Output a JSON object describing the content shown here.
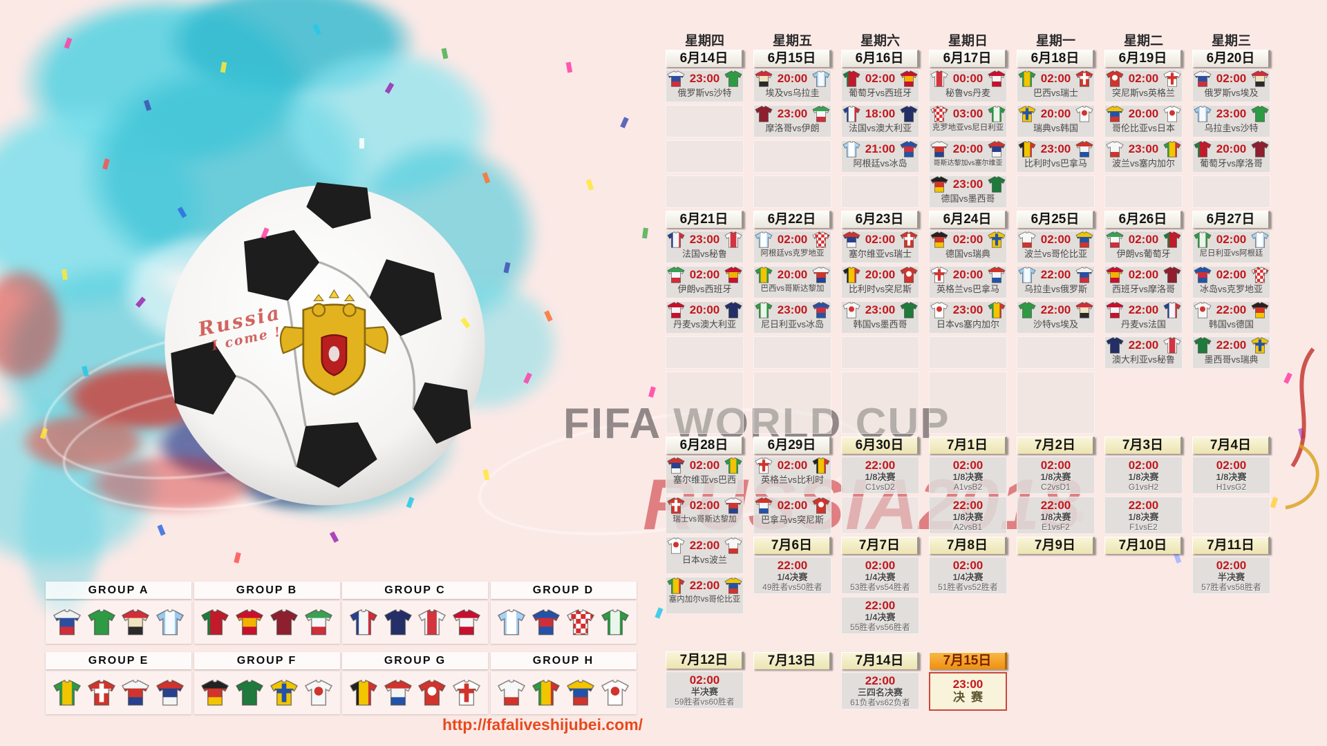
{
  "weekdays": [
    "星期四",
    "星期五",
    "星期六",
    "星期日",
    "星期一",
    "星期二",
    "星期三"
  ],
  "watermark": {
    "line1": "FIFA WORLD CUP",
    "line2": "RUSSIA2018"
  },
  "handwriting": {
    "line1": "Russia",
    "line2": "I come !"
  },
  "url": "http://fafaliveshijubei.com/",
  "colors": {
    "time_red": "#c3161c",
    "date_beige": "#eae6dc",
    "date_yellow": "#ece4b2",
    "date_orange": "#ee9010",
    "cell_gray": "#dedcd9",
    "splash_teal": "#45c6d8"
  },
  "teams": {
    "russia": {
      "name": "俄罗斯",
      "j": {
        "type": "stripes",
        "dir": "h",
        "c": [
          "#f2f2f2",
          "#2a4fa0",
          "#cf2e3a"
        ]
      }
    },
    "saudi": {
      "name": "沙特",
      "j": {
        "type": "stripes",
        "dir": "h",
        "c": [
          "#2f9a44"
        ]
      }
    },
    "egypt": {
      "name": "埃及",
      "j": {
        "type": "stripes",
        "dir": "h",
        "c": [
          "#cf2e3a",
          "#efe3c0",
          "#2a2a2a"
        ]
      }
    },
    "uruguay": {
      "name": "乌拉圭",
      "j": {
        "type": "stripes",
        "dir": "v",
        "c": [
          "#9dc9ec",
          "#f5faff",
          "#9dc9ec"
        ]
      }
    },
    "portugal": {
      "name": "葡萄牙",
      "j": {
        "type": "stripes",
        "dir": "v",
        "c": [
          "#1b7e3c",
          "#c11a2b",
          "#c11a2b"
        ]
      }
    },
    "spain": {
      "name": "西班牙",
      "j": {
        "type": "stripes",
        "dir": "h",
        "c": [
          "#c8102e",
          "#f0b400",
          "#c8102e"
        ]
      }
    },
    "morocco": {
      "name": "摩洛哥",
      "j": {
        "type": "stripes",
        "dir": "h",
        "c": [
          "#8e1f2f"
        ]
      }
    },
    "iran": {
      "name": "伊朗",
      "j": {
        "type": "stripes",
        "dir": "h",
        "c": [
          "#3aa053",
          "#f7f7f7",
          "#cf2e3a"
        ]
      }
    },
    "france": {
      "name": "法国",
      "j": {
        "type": "stripes",
        "dir": "v",
        "c": [
          "#27418f",
          "#f5f5f5",
          "#cf2e3a"
        ]
      }
    },
    "australia": {
      "name": "澳大利亚",
      "j": {
        "type": "stripes",
        "dir": "h",
        "c": [
          "#232f66"
        ]
      }
    },
    "peru": {
      "name": "秘鲁",
      "j": {
        "type": "stripes",
        "dir": "v",
        "c": [
          "#f7f7f7",
          "#d23440",
          "#f7f7f7"
        ]
      }
    },
    "denmark": {
      "name": "丹麦",
      "j": {
        "type": "stripes",
        "dir": "h",
        "c": [
          "#c8102e",
          "#f5f5f5",
          "#c8102e"
        ]
      }
    },
    "argentina": {
      "name": "阿根廷",
      "j": {
        "type": "stripes",
        "dir": "v",
        "c": [
          "#a9d3f5",
          "#ffffff",
          "#a9d3f5"
        ]
      }
    },
    "iceland": {
      "name": "冰岛",
      "j": {
        "type": "stripes",
        "dir": "h",
        "c": [
          "#2253a8",
          "#cf2e3a",
          "#2253a8"
        ]
      }
    },
    "croatia": {
      "name": "克罗地亚",
      "j": {
        "type": "check",
        "c": [
          "#d92b2b",
          "#ffffff"
        ]
      }
    },
    "nigeria": {
      "name": "尼日利亚",
      "j": {
        "type": "stripes",
        "dir": "v",
        "c": [
          "#2f9a44",
          "#eaf5ec",
          "#2f9a44"
        ]
      }
    },
    "brazil": {
      "name": "巴西",
      "j": {
        "type": "stripes",
        "dir": "v",
        "c": [
          "#2f9a44",
          "#f2c500",
          "#2f9a44"
        ]
      }
    },
    "switzerland": {
      "name": "瑞士",
      "j": {
        "type": "cross",
        "c": [
          "#d0342c",
          "#ffffff"
        ]
      }
    },
    "costarica": {
      "name": "哥斯达黎加",
      "j": {
        "type": "stripes",
        "dir": "h",
        "c": [
          "#f5f5f5",
          "#d0342c",
          "#27418f"
        ]
      }
    },
    "serbia": {
      "name": "塞尔维亚",
      "j": {
        "type": "stripes",
        "dir": "h",
        "c": [
          "#d0342c",
          "#27418f",
          "#f5f5f5"
        ]
      }
    },
    "germany": {
      "name": "德国",
      "j": {
        "type": "stripes",
        "dir": "h",
        "c": [
          "#222222",
          "#d0342c",
          "#f2c500"
        ]
      }
    },
    "mexico": {
      "name": "墨西哥",
      "j": {
        "type": "stripes",
        "dir": "h",
        "c": [
          "#1f7a3c"
        ]
      }
    },
    "sweden": {
      "name": "瑞典",
      "j": {
        "type": "cross",
        "c": [
          "#f2c500",
          "#2253a8"
        ]
      }
    },
    "korea": {
      "name": "韩国",
      "j": {
        "type": "dot",
        "c": [
          "#f7f7f7",
          "#d0342c"
        ]
      }
    },
    "belgium": {
      "name": "比利时",
      "j": {
        "type": "stripes",
        "dir": "v",
        "c": [
          "#222222",
          "#f2c500",
          "#d0342c"
        ]
      }
    },
    "panama": {
      "name": "巴拿马",
      "j": {
        "type": "stripes",
        "dir": "h",
        "c": [
          "#d0342c",
          "#f5f5f5",
          "#2253a8"
        ]
      }
    },
    "tunisia": {
      "name": "突尼斯",
      "j": {
        "type": "dot",
        "c": [
          "#d0342c",
          "#ffffff"
        ]
      }
    },
    "england": {
      "name": "英格兰",
      "j": {
        "type": "cross",
        "c": [
          "#ffffff",
          "#d0342c"
        ]
      }
    },
    "poland": {
      "name": "波兰",
      "j": {
        "type": "stripes",
        "dir": "h",
        "c": [
          "#f7f7f7",
          "#f7f7f7",
          "#d0342c"
        ]
      }
    },
    "senegal": {
      "name": "塞内加尔",
      "j": {
        "type": "stripes",
        "dir": "v",
        "c": [
          "#2f9a44",
          "#f2c500",
          "#d0342c"
        ]
      }
    },
    "colombia": {
      "name": "哥伦比亚",
      "j": {
        "type": "stripes",
        "dir": "h",
        "c": [
          "#f2c500",
          "#2253a8",
          "#d0342c"
        ]
      }
    },
    "japan": {
      "name": "日本",
      "j": {
        "type": "dot",
        "c": [
          "#ffffff",
          "#d0342c"
        ]
      }
    }
  },
  "columns": [
    {
      "weekday": "星期四",
      "items": [
        {
          "t": "date",
          "v": "6月14日"
        },
        {
          "t": "m",
          "time": "23:00",
          "h": "russia",
          "a": "saudi"
        },
        {
          "t": "e"
        },
        {
          "t": "e"
        },
        {
          "t": "e"
        },
        {
          "t": "date",
          "v": "6月21日"
        },
        {
          "t": "m",
          "time": "23:00",
          "h": "france",
          "a": "peru"
        },
        {
          "t": "m",
          "time": "02:00",
          "h": "iran",
          "a": "spain"
        },
        {
          "t": "m",
          "time": "20:00",
          "h": "denmark",
          "a": "australia"
        },
        {
          "t": "e"
        },
        {
          "t": "erow"
        },
        {
          "t": "date",
          "v": "6月28日"
        },
        {
          "t": "m3",
          "time": "02:00",
          "h": "serbia",
          "a": "brazil"
        },
        {
          "t": "m3",
          "time": "02:00",
          "h": "switzerland",
          "a": "costarica"
        },
        {
          "t": "m3",
          "time": "22:00",
          "h": "japan",
          "a": "poland"
        },
        {
          "t": "m3",
          "time": "22:00",
          "h": "senegal",
          "a": "colombia"
        },
        {
          "t": "gap",
          "v": "g50"
        },
        {
          "t": "date",
          "v": "7月12日",
          "style": "ko"
        },
        {
          "t": "ko",
          "time": "02:00",
          "stage": "半决赛",
          "label": "59胜者vs60胜者"
        }
      ]
    },
    {
      "weekday": "星期五",
      "items": [
        {
          "t": "date",
          "v": "6月15日"
        },
        {
          "t": "m",
          "time": "20:00",
          "h": "egypt",
          "a": "uruguay"
        },
        {
          "t": "m",
          "time": "23:00",
          "h": "morocco",
          "a": "iran"
        },
        {
          "t": "e"
        },
        {
          "t": "e"
        },
        {
          "t": "date",
          "v": "6月22日"
        },
        {
          "t": "m",
          "time": "02:00",
          "h": "argentina",
          "a": "croatia"
        },
        {
          "t": "m",
          "time": "20:00",
          "h": "brazil",
          "a": "costarica"
        },
        {
          "t": "m",
          "time": "23:00",
          "h": "nigeria",
          "a": "iceland"
        },
        {
          "t": "e"
        },
        {
          "t": "erow"
        },
        {
          "t": "date",
          "v": "6月29日"
        },
        {
          "t": "m3",
          "time": "02:00",
          "h": "england",
          "a": "belgium"
        },
        {
          "t": "m3",
          "time": "02:00",
          "h": "panama",
          "a": "tunisia"
        },
        {
          "t": "date",
          "v": "7月6日",
          "style": "ko"
        },
        {
          "t": "ko",
          "time": "22:00",
          "stage": "1/4决赛",
          "label": "49胜者vs50胜者"
        },
        {
          "t": "gap",
          "v": "g80"
        },
        {
          "t": "date",
          "v": "7月13日",
          "style": "ko"
        }
      ]
    },
    {
      "weekday": "星期六",
      "items": [
        {
          "t": "date",
          "v": "6月16日"
        },
        {
          "t": "m",
          "time": "02:00",
          "h": "portugal",
          "a": "spain"
        },
        {
          "t": "m",
          "time": "18:00",
          "h": "france",
          "a": "australia"
        },
        {
          "t": "m",
          "time": "21:00",
          "h": "argentina",
          "a": "iceland"
        },
        {
          "t": "e"
        },
        {
          "t": "date",
          "v": "6月23日"
        },
        {
          "t": "m",
          "time": "02:00",
          "h": "serbia",
          "a": "switzerland"
        },
        {
          "t": "m",
          "time": "20:00",
          "h": "belgium",
          "a": "tunisia"
        },
        {
          "t": "m",
          "time": "23:00",
          "h": "korea",
          "a": "mexico"
        },
        {
          "t": "e"
        },
        {
          "t": "erow"
        },
        {
          "t": "date",
          "v": "6月30日",
          "style": "ko"
        },
        {
          "t": "ko",
          "time": "22:00",
          "stage": "1/8决赛",
          "label": "C1vsD2"
        },
        {
          "t": "e3"
        },
        {
          "t": "date",
          "v": "7月7日",
          "style": "ko"
        },
        {
          "t": "ko",
          "time": "02:00",
          "stage": "1/4决赛",
          "label": "53胜者vs54胜者"
        },
        {
          "t": "ko",
          "time": "22:00",
          "stage": "1/4决赛",
          "label": "55胜者vs56胜者"
        },
        {
          "t": "gap",
          "v": "g22"
        },
        {
          "t": "date",
          "v": "7月14日",
          "style": "ko"
        },
        {
          "t": "ko",
          "time": "22:00",
          "stage": "三四名决赛",
          "label": "61负者vs62负者"
        }
      ]
    },
    {
      "weekday": "星期日",
      "items": [
        {
          "t": "date",
          "v": "6月17日"
        },
        {
          "t": "m",
          "time": "00:00",
          "h": "peru",
          "a": "denmark"
        },
        {
          "t": "m",
          "time": "03:00",
          "h": "croatia",
          "a": "nigeria"
        },
        {
          "t": "m",
          "time": "20:00",
          "h": "costarica",
          "a": "serbia"
        },
        {
          "t": "m",
          "time": "23:00",
          "h": "germany",
          "a": "mexico"
        },
        {
          "t": "date",
          "v": "6月24日"
        },
        {
          "t": "m",
          "time": "02:00",
          "h": "germany",
          "a": "sweden"
        },
        {
          "t": "m",
          "time": "20:00",
          "h": "england",
          "a": "panama"
        },
        {
          "t": "m",
          "time": "23:00",
          "h": "japan",
          "a": "senegal"
        },
        {
          "t": "e"
        },
        {
          "t": "erow"
        },
        {
          "t": "date",
          "v": "7月1日",
          "style": "ko"
        },
        {
          "t": "ko",
          "time": "02:00",
          "stage": "1/8决赛",
          "label": "A1vsB2"
        },
        {
          "t": "ko",
          "time": "22:00",
          "stage": "1/8决赛",
          "label": "A2vsB1"
        },
        {
          "t": "date",
          "v": "7月8日",
          "style": "ko"
        },
        {
          "t": "ko",
          "time": "02:00",
          "stage": "1/4决赛",
          "label": "51胜者vs52胜者"
        },
        {
          "t": "gap",
          "v": "g80"
        },
        {
          "t": "date",
          "v": "7月15日",
          "style": "final"
        },
        {
          "t": "fin",
          "time": "23:00",
          "stage": "决赛"
        }
      ]
    },
    {
      "weekday": "星期一",
      "items": [
        {
          "t": "date",
          "v": "6月18日"
        },
        {
          "t": "m",
          "time": "02:00",
          "h": "brazil",
          "a": "switzerland"
        },
        {
          "t": "m",
          "time": "20:00",
          "h": "sweden",
          "a": "korea"
        },
        {
          "t": "m",
          "time": "23:00",
          "h": "belgium",
          "a": "panama"
        },
        {
          "t": "e"
        },
        {
          "t": "date",
          "v": "6月25日"
        },
        {
          "t": "m",
          "time": "02:00",
          "h": "poland",
          "a": "colombia"
        },
        {
          "t": "m",
          "time": "22:00",
          "h": "uruguay",
          "a": "russia"
        },
        {
          "t": "m",
          "time": "22:00",
          "h": "saudi",
          "a": "egypt"
        },
        {
          "t": "e"
        },
        {
          "t": "erow"
        },
        {
          "t": "date",
          "v": "7月2日",
          "style": "ko"
        },
        {
          "t": "ko",
          "time": "02:00",
          "stage": "1/8决赛",
          "label": "C2vsD1"
        },
        {
          "t": "ko",
          "time": "22:00",
          "stage": "1/8决赛",
          "label": "E1vsF2"
        },
        {
          "t": "date",
          "v": "7月9日",
          "style": "ko"
        }
      ]
    },
    {
      "weekday": "星期二",
      "items": [
        {
          "t": "date",
          "v": "6月19日"
        },
        {
          "t": "m",
          "time": "02:00",
          "h": "tunisia",
          "a": "england"
        },
        {
          "t": "m",
          "time": "20:00",
          "h": "colombia",
          "a": "japan"
        },
        {
          "t": "m",
          "time": "23:00",
          "h": "poland",
          "a": "senegal"
        },
        {
          "t": "e"
        },
        {
          "t": "date",
          "v": "6月26日"
        },
        {
          "t": "m",
          "time": "02:00",
          "h": "iran",
          "a": "portugal"
        },
        {
          "t": "m",
          "time": "02:00",
          "h": "spain",
          "a": "morocco"
        },
        {
          "t": "m",
          "time": "22:00",
          "h": "denmark",
          "a": "france"
        },
        {
          "t": "m",
          "time": "22:00",
          "h": "australia",
          "a": "peru"
        },
        {
          "t": "gap",
          "v": "erowgap"
        },
        {
          "t": "date",
          "v": "7月3日",
          "style": "ko"
        },
        {
          "t": "ko",
          "time": "02:00",
          "stage": "1/8决赛",
          "label": "G1vsH2"
        },
        {
          "t": "ko",
          "time": "22:00",
          "stage": "1/8决赛",
          "label": "F1vsE2"
        },
        {
          "t": "date",
          "v": "7月10日",
          "style": "ko"
        }
      ]
    },
    {
      "weekday": "星期三",
      "items": [
        {
          "t": "date",
          "v": "6月20日"
        },
        {
          "t": "m",
          "time": "02:00",
          "h": "russia",
          "a": "egypt"
        },
        {
          "t": "m",
          "time": "23:00",
          "h": "uruguay",
          "a": "saudi"
        },
        {
          "t": "m",
          "time": "20:00",
          "h": "portugal",
          "a": "morocco"
        },
        {
          "t": "e"
        },
        {
          "t": "date",
          "v": "6月27日"
        },
        {
          "t": "m",
          "time": "02:00",
          "h": "nigeria",
          "a": "argentina"
        },
        {
          "t": "m",
          "time": "02:00",
          "h": "iceland",
          "a": "croatia"
        },
        {
          "t": "m",
          "time": "22:00",
          "h": "korea",
          "a": "germany"
        },
        {
          "t": "m",
          "time": "22:00",
          "h": "mexico",
          "a": "sweden"
        },
        {
          "t": "gap",
          "v": "erowgap"
        },
        {
          "t": "date",
          "v": "7月4日",
          "style": "ko"
        },
        {
          "t": "ko",
          "time": "02:00",
          "stage": "1/8决赛",
          "label": "H1vsG2"
        },
        {
          "t": "e3"
        },
        {
          "t": "date",
          "v": "7月11日",
          "style": "ko"
        },
        {
          "t": "ko",
          "time": "02:00",
          "stage": "半决赛",
          "label": "57胜者vs58胜者"
        }
      ]
    }
  ],
  "groups": [
    {
      "label": "GROUP A",
      "teams": [
        "russia",
        "saudi",
        "egypt",
        "uruguay"
      ]
    },
    {
      "label": "GROUP B",
      "teams": [
        "portugal",
        "spain",
        "morocco",
        "iran"
      ]
    },
    {
      "label": "GROUP C",
      "teams": [
        "france",
        "australia",
        "peru",
        "denmark"
      ]
    },
    {
      "label": "GROUP D",
      "teams": [
        "argentina",
        "iceland",
        "croatia",
        "nigeria"
      ]
    },
    {
      "label": "GROUP E",
      "teams": [
        "brazil",
        "switzerland",
        "costarica",
        "serbia"
      ]
    },
    {
      "label": "GROUP F",
      "teams": [
        "germany",
        "mexico",
        "sweden",
        "korea"
      ]
    },
    {
      "label": "GROUP G",
      "teams": [
        "belgium",
        "panama",
        "tunisia",
        "england"
      ]
    },
    {
      "label": "GROUP H",
      "teams": [
        "poland",
        "senegal",
        "colombia",
        "japan"
      ]
    }
  ]
}
